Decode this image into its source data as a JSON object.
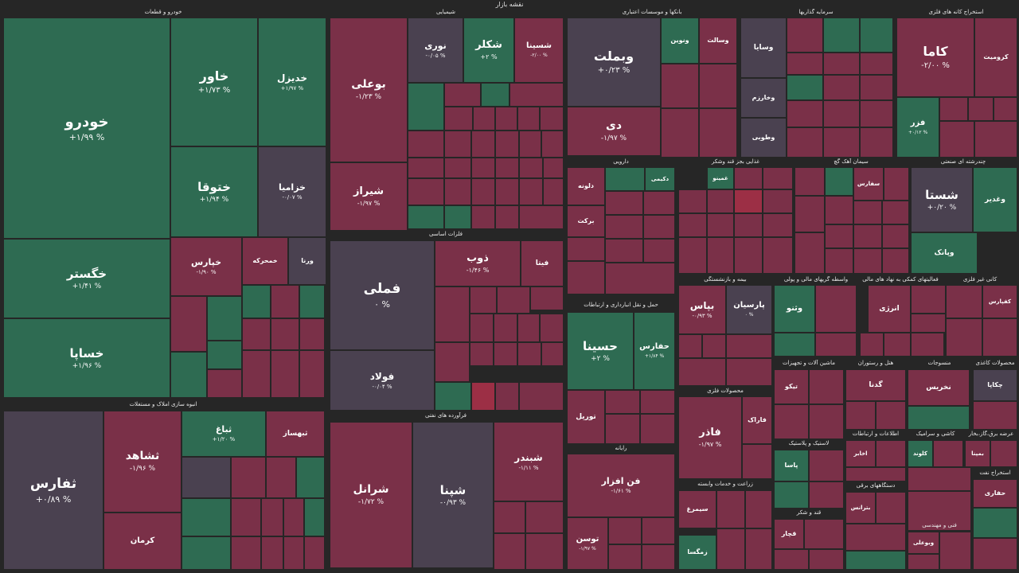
{
  "page_title": "نقشه بازار",
  "colors": {
    "up": "#2e6b52",
    "up_strong": "#2f7a5a",
    "down": "#7a3048",
    "down_strong": "#9c2f45",
    "neutral": "#4a4150",
    "background": "#262626"
  },
  "chart_data": {
    "type": "treemap",
    "title": "نقشه بازار",
    "sectors": [
      {
        "name": "خودرو و قطعات",
        "stocks": [
          {
            "symbol": "خودرو",
            "change": "+۱/۹۹ %"
          },
          {
            "symbol": "خاور",
            "change": "+۱/۷۳ %"
          },
          {
            "symbol": "خدیزل",
            "change": "+۱/۹۷ %"
          },
          {
            "symbol": "ختوقا",
            "change": "+۱/۹۴ %"
          },
          {
            "symbol": "خزامیا",
            "change": "-۰/۰۷ %"
          },
          {
            "symbol": "خگستر",
            "change": "+۱/۴۱ %"
          },
          {
            "symbol": "خساپا",
            "change": "+۱/۹۶ %"
          },
          {
            "symbol": "خپارس",
            "change": "-۱/۹۰ %"
          },
          {
            "symbol": "خمحرکه",
            "change": ""
          },
          {
            "symbol": "ورنا",
            "change": ""
          }
        ]
      },
      {
        "name": "شیمیایی",
        "stocks": [
          {
            "symbol": "نوری",
            "change": "-۰/۰۵ %"
          },
          {
            "symbol": "شکلر",
            "change": "+۲ %"
          },
          {
            "symbol": "شسینا",
            "change": "-۲/۰۰ %"
          }
        ]
      },
      {
        "name": "بانکها و موسسات اعتباری",
        "stocks": [
          {
            "symbol": "وبملت",
            "change": "+۰/۲۳ %"
          },
          {
            "symbol": "دی",
            "change": "-۱/۹۷ %"
          },
          {
            "symbol": "ونوین",
            "change": ""
          },
          {
            "symbol": "وسالت",
            "change": ""
          }
        ]
      },
      {
        "name": "سرمایه گذاریها",
        "stocks": [
          {
            "symbol": "وسایا",
            "change": ""
          },
          {
            "symbol": "وخارزم",
            "change": ""
          },
          {
            "symbol": "وطوبی",
            "change": ""
          }
        ]
      },
      {
        "name": "استخراج کانه های فلزی",
        "stocks": [
          {
            "symbol": "کاما",
            "change": "-۲/۰۰ %"
          },
          {
            "symbol": "کرومیت",
            "change": ""
          },
          {
            "symbol": "فزر",
            "change": "+۰/۱۲ %"
          }
        ]
      },
      {
        "name": "فلزات اساسی",
        "stocks": [
          {
            "symbol": "فملی",
            "change": "۰ %"
          },
          {
            "symbol": "فولاد",
            "change": "-۰/۰۴ %"
          },
          {
            "symbol": "ذوب",
            "change": "-۱/۴۶ %"
          },
          {
            "symbol": "فیتا",
            "change": ""
          }
        ]
      },
      {
        "name": "فرآورده های نفتی",
        "stocks": [
          {
            "symbol": "بوعلی",
            "change": "-۱/۲۳ %"
          },
          {
            "symbol": "شیراز",
            "change": "-۱/۹۷ %"
          },
          {
            "symbol": "شرانل",
            "change": "-۱/۷۲ %"
          },
          {
            "symbol": "شپنا",
            "change": "-۰/۹۳ %"
          },
          {
            "symbol": "شبندر",
            "change": "-۱/۱۱ %"
          }
        ]
      },
      {
        "name": "انبوه سازی املاک و مستغلات",
        "stocks": [
          {
            "symbol": "ثفارس",
            "change": "+۰/۸۹ %"
          },
          {
            "symbol": "ثشاهد",
            "change": "-۱/۹۶ %"
          },
          {
            "symbol": "ثباغ",
            "change": "+۱/۲۰ %"
          },
          {
            "symbol": "ثبهساز",
            "change": ""
          },
          {
            "symbol": "کرمان",
            "change": ""
          }
        ]
      },
      {
        "name": "حمل و نقل انبارداری و ارتباطات",
        "stocks": [
          {
            "symbol": "حسینا",
            "change": "+۲ %"
          },
          {
            "symbol": "حفارس",
            "change": "+۱/۸۴ %"
          },
          {
            "symbol": "توریل",
            "change": ""
          }
        ]
      },
      {
        "name": "رایانه",
        "stocks": [
          {
            "symbol": "فن افزار",
            "change": "-۱/۶۱ %"
          },
          {
            "symbol": "توسن",
            "change": "-۱/۹۷ %"
          }
        ]
      },
      {
        "name": "بیمه و بازنشستگی",
        "stocks": [
          {
            "symbol": "بپاس",
            "change": "-۰/۹۳ %"
          },
          {
            "symbol": "پارسیان",
            "change": "۰ %"
          }
        ]
      },
      {
        "name": "محصولات فلزی",
        "stocks": [
          {
            "symbol": "فاذر",
            "change": "-۱/۹۷ %"
          },
          {
            "symbol": "فاراک",
            "change": ""
          }
        ]
      },
      {
        "name": "دارویی",
        "stocks": [
          {
            "symbol": "دلونه",
            "change": ""
          },
          {
            "symbol": "برکت",
            "change": ""
          },
          {
            "symbol": "دکیمی",
            "change": ""
          }
        ]
      },
      {
        "name": "چندرشته ای صنعتی",
        "stocks": [
          {
            "symbol": "شستا",
            "change": "+۰/۲۰ %"
          },
          {
            "symbol": "وغدیر",
            "change": ""
          },
          {
            "symbol": "وپانک",
            "change": ""
          }
        ]
      },
      {
        "name": "واسطه گریهای مالی و پولی",
        "stocks": [
          {
            "symbol": "وثنو",
            "change": ""
          }
        ]
      },
      {
        "name": "فعالیتهای کمکی به نهاد های مالی",
        "stocks": [
          {
            "symbol": "انرژی",
            "change": ""
          }
        ]
      },
      {
        "name": "کانی غیر فلزی",
        "stocks": [
          {
            "symbol": "کفپارس",
            "change": ""
          }
        ]
      },
      {
        "name": "سیمان آهک گچ",
        "stocks": [
          {
            "symbol": "سفارس",
            "change": ""
          }
        ]
      },
      {
        "name": "غذایی بجز قند وشکر",
        "stocks": [
          {
            "symbol": "غمینو",
            "change": ""
          }
        ]
      },
      {
        "name": "منسوجات",
        "stocks": [
          {
            "symbol": "نخریس",
            "change": ""
          }
        ]
      },
      {
        "name": "هتل و رستوران",
        "stocks": [
          {
            "symbol": "گدنا",
            "change": ""
          }
        ]
      },
      {
        "name": "محصولات کاغذی",
        "stocks": [
          {
            "symbol": "چکاپا",
            "change": ""
          }
        ]
      },
      {
        "name": "زراعت و خدمات وابسته",
        "stocks": [
          {
            "symbol": "سیمرغ",
            "change": ""
          },
          {
            "symbol": "زمگسا",
            "change": ""
          }
        ]
      },
      {
        "name": "لاستیک و پلاستیک",
        "stocks": [
          {
            "symbol": "پاسا",
            "change": ""
          }
        ]
      },
      {
        "name": "دستگاههای برقی",
        "stocks": [
          {
            "symbol": "بترانس",
            "change": ""
          }
        ]
      },
      {
        "name": "ماشین آلات و تجهیزات",
        "stocks": [
          {
            "symbol": "تیکو",
            "change": ""
          }
        ]
      },
      {
        "name": "اطلاعات و ارتباطات",
        "stocks": [
          {
            "symbol": "اخابر",
            "change": ""
          }
        ]
      },
      {
        "name": "کاشی و سرامیک",
        "stocks": [
          {
            "symbol": "کلوند",
            "change": ""
          }
        ]
      },
      {
        "name": "عرضه برق،گاز،بخار",
        "stocks": [
          {
            "symbol": "بمپنا",
            "change": ""
          }
        ]
      },
      {
        "name": "استخراج نفت",
        "stocks": [
          {
            "symbol": "حفاری",
            "change": ""
          }
        ]
      },
      {
        "name": "قند و شکر",
        "stocks": [
          {
            "symbol": "قچار",
            "change": ""
          }
        ]
      },
      {
        "name": "فنی و مهندسی",
        "stocks": [
          {
            "symbol": "وبوعلی",
            "change": ""
          }
        ]
      }
    ]
  }
}
